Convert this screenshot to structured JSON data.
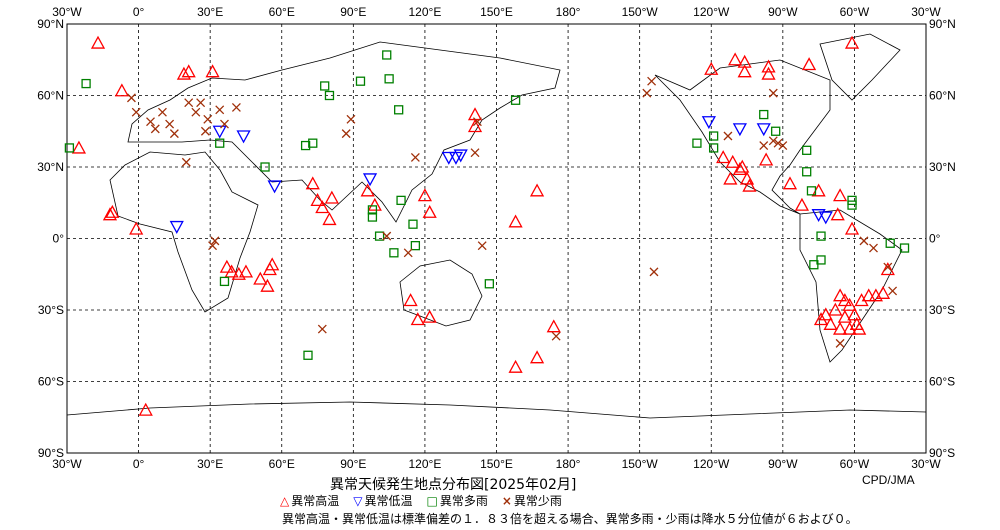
{
  "title": "異常天候発生地点分布図[2025年02月]",
  "credit": "CPD/JMA",
  "lon_labels": [
    "30°W",
    "0°",
    "30°E",
    "60°E",
    "90°E",
    "120°E",
    "150°E",
    "180°",
    "150°W",
    "120°W",
    "90°W",
    "60°W",
    "30°W"
  ],
  "lat_labels": [
    "90°N",
    "60°N",
    "30°N",
    "0°",
    "30°S",
    "60°S",
    "90°S"
  ],
  "legend": [
    {
      "key": "high_temp",
      "label": "異常高温",
      "symbol": "△",
      "color": "#ff0000"
    },
    {
      "key": "low_temp",
      "label": "異常低温",
      "symbol": "▽",
      "color": "#0000ff"
    },
    {
      "key": "heavy_precip",
      "label": "異常多雨",
      "symbol": "□",
      "color": "#008000"
    },
    {
      "key": "light_precip",
      "label": "異常少雨",
      "symbol": "×",
      "color": "#a0300a"
    }
  ],
  "note": "異常高温・異常低温は標準偏差の１．８３倍を超える場合、異常多雨・少雨は降水５分位値が６および０。",
  "markers": {
    "high_temp": [
      [
        -17,
        82
      ],
      [
        -25,
        38
      ],
      [
        -7,
        62
      ],
      [
        19,
        69
      ],
      [
        21,
        70
      ],
      [
        31,
        70
      ],
      [
        -11,
        11
      ],
      [
        -12,
        10
      ],
      [
        -1,
        4
      ],
      [
        37,
        -12
      ],
      [
        39,
        -14
      ],
      [
        42,
        -15
      ],
      [
        45,
        -14
      ],
      [
        51,
        -17
      ],
      [
        55,
        -13
      ],
      [
        56,
        -11
      ],
      [
        54,
        -20
      ],
      [
        73,
        23
      ],
      [
        75,
        16
      ],
      [
        77,
        13
      ],
      [
        81,
        17
      ],
      [
        80,
        8
      ],
      [
        96,
        20
      ],
      [
        99,
        14
      ],
      [
        120,
        18
      ],
      [
        122,
        11
      ],
      [
        114,
        -26
      ],
      [
        117,
        -34
      ],
      [
        122,
        -33
      ],
      [
        141,
        52
      ],
      [
        141,
        47
      ],
      [
        158,
        7
      ],
      [
        167,
        20
      ],
      [
        174,
        -37
      ],
      [
        167,
        -50
      ],
      [
        158,
        -54
      ],
      [
        3,
        -72
      ],
      [
        -120,
        71
      ],
      [
        -110,
        75
      ],
      [
        -106,
        74
      ],
      [
        -96,
        72
      ],
      [
        -106,
        70
      ],
      [
        -96,
        69
      ],
      [
        -79,
        73
      ],
      [
        -61,
        82
      ],
      [
        -115,
        34
      ],
      [
        -111,
        32
      ],
      [
        -108,
        29
      ],
      [
        -105,
        25
      ],
      [
        -104,
        22
      ],
      [
        -112,
        25
      ],
      [
        -107,
        30
      ],
      [
        -97,
        33
      ],
      [
        -87,
        23
      ],
      [
        -82,
        14
      ],
      [
        -75,
        20
      ],
      [
        -66,
        18
      ],
      [
        -67,
        10
      ],
      [
        -61,
        4
      ],
      [
        -74,
        -34
      ],
      [
        -72,
        -32
      ],
      [
        -70,
        -36
      ],
      [
        -68,
        -30
      ],
      [
        -66,
        -24
      ],
      [
        -64,
        -26
      ],
      [
        -62,
        -28
      ],
      [
        -60,
        -32
      ],
      [
        -59,
        -36
      ],
      [
        -57,
        -26
      ],
      [
        -54,
        -24
      ],
      [
        -51,
        -24
      ],
      [
        -48,
        -23
      ],
      [
        -66,
        -38
      ],
      [
        -62,
        -38
      ],
      [
        -58,
        -38
      ],
      [
        -64,
        -33
      ],
      [
        -46,
        -13
      ]
    ],
    "low_temp": [
      [
        16,
        5
      ],
      [
        34,
        45
      ],
      [
        44,
        43
      ],
      [
        57,
        22
      ],
      [
        97,
        25
      ],
      [
        130,
        34
      ],
      [
        133,
        34
      ],
      [
        135,
        35
      ],
      [
        -121,
        49
      ],
      [
        -108,
        46
      ],
      [
        -98,
        46
      ],
      [
        -75,
        10
      ],
      [
        -72,
        9
      ]
    ],
    "heavy_precip": [
      [
        -22,
        65
      ],
      [
        -29,
        38
      ],
      [
        34,
        40
      ],
      [
        36,
        -18
      ],
      [
        53,
        30
      ],
      [
        70,
        39
      ],
      [
        73,
        40
      ],
      [
        78,
        64
      ],
      [
        80,
        60
      ],
      [
        93,
        66
      ],
      [
        104,
        77
      ],
      [
        105,
        67
      ],
      [
        109,
        54
      ],
      [
        98,
        12
      ],
      [
        98,
        9
      ],
      [
        101,
        1
      ],
      [
        110,
        16
      ],
      [
        107,
        -6
      ],
      [
        115,
        6
      ],
      [
        116,
        -3
      ],
      [
        147,
        -19
      ],
      [
        158,
        58
      ],
      [
        71,
        -49
      ],
      [
        -126,
        40
      ],
      [
        -119,
        43
      ],
      [
        -119,
        38
      ],
      [
        -98,
        52
      ],
      [
        -93,
        45
      ],
      [
        -80,
        37
      ],
      [
        -80,
        28
      ],
      [
        -78,
        20
      ],
      [
        -74,
        1
      ],
      [
        -77,
        -11
      ],
      [
        -74,
        -9
      ],
      [
        -61,
        16
      ],
      [
        -61,
        14
      ],
      [
        -45,
        -2
      ],
      [
        -39,
        -4
      ]
    ],
    "light_precip": [
      [
        -3,
        59
      ],
      [
        -1,
        53
      ],
      [
        5,
        49
      ],
      [
        7,
        46
      ],
      [
        10,
        53
      ],
      [
        13,
        48
      ],
      [
        15,
        44
      ],
      [
        21,
        57
      ],
      [
        20,
        32
      ],
      [
        24,
        53
      ],
      [
        26,
        57
      ],
      [
        28,
        45
      ],
      [
        29,
        50
      ],
      [
        34,
        54
      ],
      [
        36,
        48
      ],
      [
        41,
        55
      ],
      [
        32,
        -1
      ],
      [
        31,
        -3
      ],
      [
        89,
        50
      ],
      [
        87,
        44
      ],
      [
        116,
        34
      ],
      [
        141,
        36
      ],
      [
        142,
        49
      ],
      [
        144,
        -3
      ],
      [
        104,
        1
      ],
      [
        113,
        -6
      ],
      [
        -145,
        66
      ],
      [
        -147,
        61
      ],
      [
        -144,
        -14
      ],
      [
        77,
        -38
      ],
      [
        175,
        -41
      ],
      [
        -113,
        43
      ],
      [
        -98,
        39
      ],
      [
        -94,
        41
      ],
      [
        -92,
        40
      ],
      [
        -90,
        39
      ],
      [
        -94,
        61
      ],
      [
        -56,
        -1
      ],
      [
        -46,
        -12
      ],
      [
        -44,
        -22
      ],
      [
        -66,
        -44
      ],
      [
        -52,
        -4
      ]
    ]
  }
}
